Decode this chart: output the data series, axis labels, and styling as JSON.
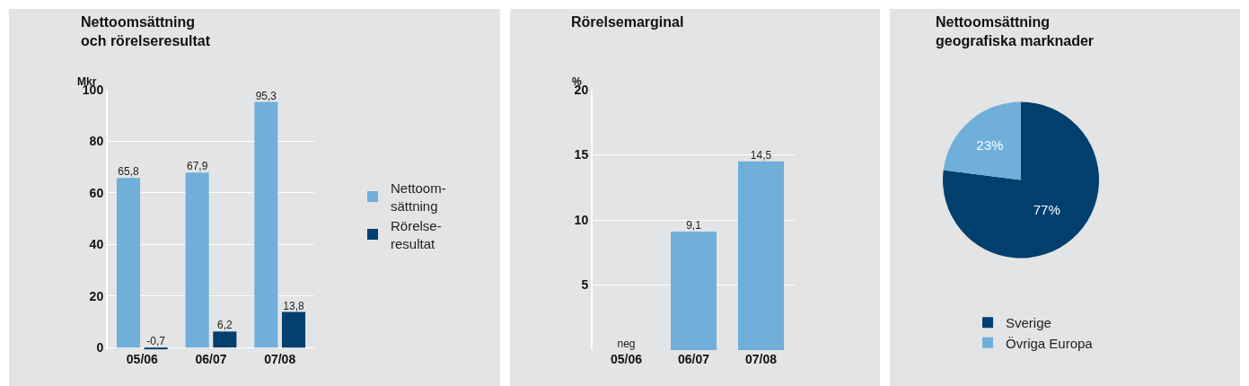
{
  "chart_data": [
    {
      "type": "bar",
      "title": "Nettoomsättning\noch rörelseresultat",
      "ylabel": "Mkr",
      "categories": [
        "05/06",
        "06/07",
        "07/08"
      ],
      "series": [
        {
          "name": "Nettoom-\nsättning",
          "color": "#6fafd9",
          "values": [
            65.8,
            67.9,
            95.3
          ],
          "value_labels": [
            "65,8",
            "67,9",
            "95,3"
          ]
        },
        {
          "name": "Rörelse-\nresultat",
          "color": "#003f6e",
          "values": [
            -0.7,
            6.2,
            13.8
          ],
          "value_labels": [
            "-0,7",
            "6,2",
            "13,8"
          ]
        }
      ],
      "ylim": [
        -1,
        100
      ],
      "yticks": [
        0,
        20,
        40,
        60,
        80,
        100
      ],
      "grid": "y",
      "legend": "right"
    },
    {
      "type": "bar",
      "title": "Rörelsemarginal",
      "ylabel": "%",
      "categories": [
        "05/06",
        "06/07",
        "07/08"
      ],
      "series": [
        {
          "color": "#6fafd9",
          "values": [
            null,
            9.1,
            14.5
          ],
          "value_labels": [
            "neg",
            "9,1",
            "14,5"
          ]
        }
      ],
      "ylim": [
        0,
        20
      ],
      "yticks": [
        5,
        10,
        15,
        20
      ],
      "grid": "y"
    },
    {
      "type": "pie",
      "title": "Nettoomsättning\ngeografiska marknader",
      "categories": [
        "Sverige",
        "Övriga Europa"
      ],
      "values": [
        77,
        23
      ],
      "colors": [
        "#003f6e",
        "#6fafd9"
      ],
      "value_labels": [
        "77%",
        "23%"
      ],
      "legend": "bottom"
    }
  ]
}
